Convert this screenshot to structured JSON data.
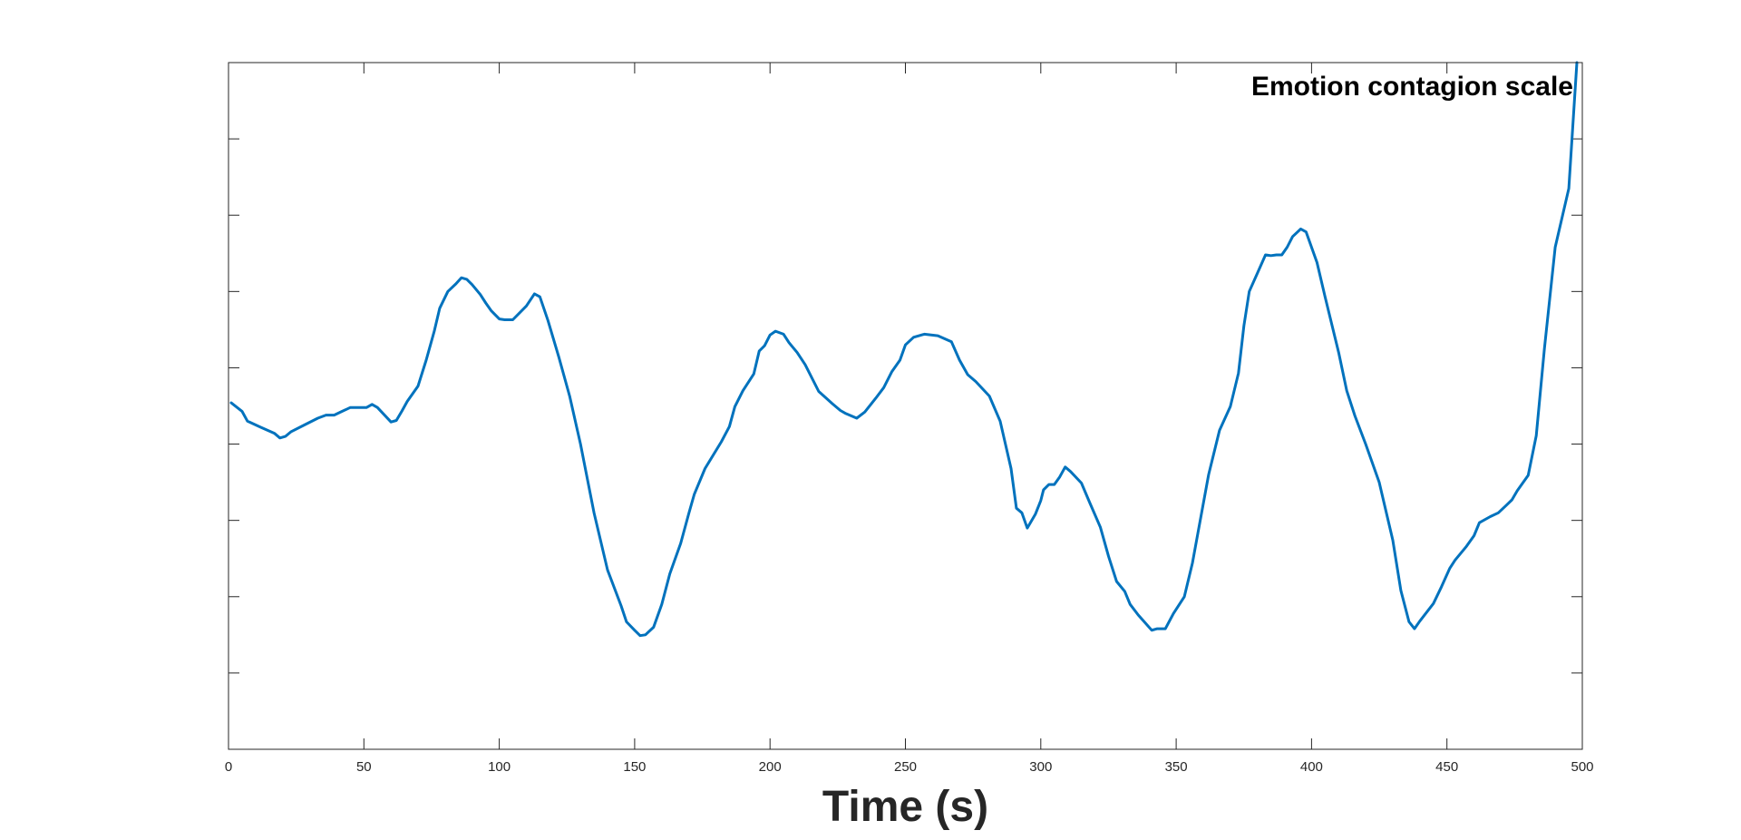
{
  "chart_data": {
    "type": "line",
    "title": "",
    "xlabel": "Time (s)",
    "ylabel": "",
    "xlim": [
      0,
      500
    ],
    "ylim": [
      0,
      9
    ],
    "x_ticks": [
      0,
      50,
      100,
      150,
      200,
      250,
      300,
      350,
      400,
      450,
      500
    ],
    "x_tick_labels": [
      "0",
      "50",
      "100",
      "150",
      "200",
      "250",
      "300",
      "350",
      "400",
      "450",
      "500"
    ],
    "y_ticks": [
      1,
      2,
      3,
      4,
      5,
      6,
      7,
      8
    ],
    "y_tick_labels": [],
    "grid": false,
    "legend_position": "top-right",
    "line_color": "#0072BD",
    "series": [
      {
        "name": "Emotion contagion scale",
        "x": [
          1,
          5,
          7,
          12,
          17,
          19,
          21,
          23,
          28,
          33,
          36,
          39,
          42,
          45,
          46,
          50,
          51,
          53,
          55,
          60,
          62,
          64,
          66,
          70,
          73,
          76,
          78,
          81,
          84,
          86,
          88,
          90,
          93,
          95,
          97,
          100,
          102,
          105,
          110,
          113,
          115,
          118,
          122,
          126,
          130,
          135,
          140,
          145,
          147,
          150,
          152,
          154,
          157,
          160,
          163,
          167,
          170,
          172,
          176,
          182,
          185,
          187,
          190,
          194,
          196,
          198,
          200,
          202,
          205,
          207,
          210,
          213,
          218,
          223,
          226,
          228,
          232,
          235,
          239,
          242,
          245,
          248,
          250,
          253,
          257,
          262,
          267,
          270,
          273,
          276,
          281,
          285,
          289,
          291,
          293,
          295,
          298,
          300,
          301,
          303,
          305,
          307,
          309,
          311,
          315,
          318,
          322,
          325,
          328,
          331,
          333,
          336,
          338,
          341,
          343,
          346,
          349,
          353,
          356,
          358,
          362,
          366,
          370,
          373,
          375,
          377,
          380,
          383,
          385,
          387,
          389,
          391,
          393,
          396,
          398,
          402,
          405,
          410,
          413,
          416,
          420,
          425,
          430,
          433,
          436,
          438,
          440,
          445,
          448,
          451,
          453,
          457,
          460,
          462,
          466,
          469,
          472,
          474,
          476,
          480,
          483,
          486,
          490,
          495,
          498
        ],
        "values": [
          4.54,
          4.43,
          4.3,
          4.22,
          4.14,
          4.08,
          4.1,
          4.16,
          4.25,
          4.34,
          4.38,
          4.38,
          4.43,
          4.48,
          4.48,
          4.48,
          4.48,
          4.52,
          4.48,
          4.29,
          4.31,
          4.43,
          4.56,
          4.76,
          5.1,
          5.48,
          5.78,
          6.0,
          6.1,
          6.18,
          6.16,
          6.09,
          5.96,
          5.85,
          5.75,
          5.64,
          5.63,
          5.63,
          5.81,
          5.97,
          5.93,
          5.62,
          5.14,
          4.63,
          4.0,
          3.1,
          2.35,
          1.88,
          1.67,
          1.56,
          1.49,
          1.5,
          1.6,
          1.9,
          2.3,
          2.7,
          3.09,
          3.34,
          3.68,
          4.03,
          4.23,
          4.49,
          4.7,
          4.92,
          5.22,
          5.29,
          5.43,
          5.48,
          5.44,
          5.33,
          5.2,
          5.04,
          4.69,
          4.53,
          4.44,
          4.4,
          4.34,
          4.42,
          4.6,
          4.74,
          4.95,
          5.1,
          5.3,
          5.4,
          5.44,
          5.42,
          5.34,
          5.1,
          4.91,
          4.82,
          4.63,
          4.3,
          3.68,
          3.16,
          3.1,
          2.9,
          3.08,
          3.26,
          3.4,
          3.47,
          3.47,
          3.57,
          3.7,
          3.64,
          3.49,
          3.24,
          2.91,
          2.53,
          2.2,
          2.07,
          1.9,
          1.76,
          1.68,
          1.56,
          1.58,
          1.58,
          1.78,
          2.0,
          2.44,
          2.83,
          3.6,
          4.18,
          4.49,
          4.93,
          5.55,
          6.0,
          6.24,
          6.48,
          6.47,
          6.48,
          6.48,
          6.58,
          6.72,
          6.82,
          6.78,
          6.38,
          5.93,
          5.2,
          4.7,
          4.37,
          4.0,
          3.5,
          2.74,
          2.08,
          1.67,
          1.58,
          1.68,
          1.91,
          2.13,
          2.37,
          2.48,
          2.65,
          2.8,
          2.97,
          3.05,
          3.1,
          3.2,
          3.27,
          3.39,
          3.59,
          4.11,
          5.25,
          6.58,
          7.35,
          9.0
        ]
      }
    ]
  }
}
